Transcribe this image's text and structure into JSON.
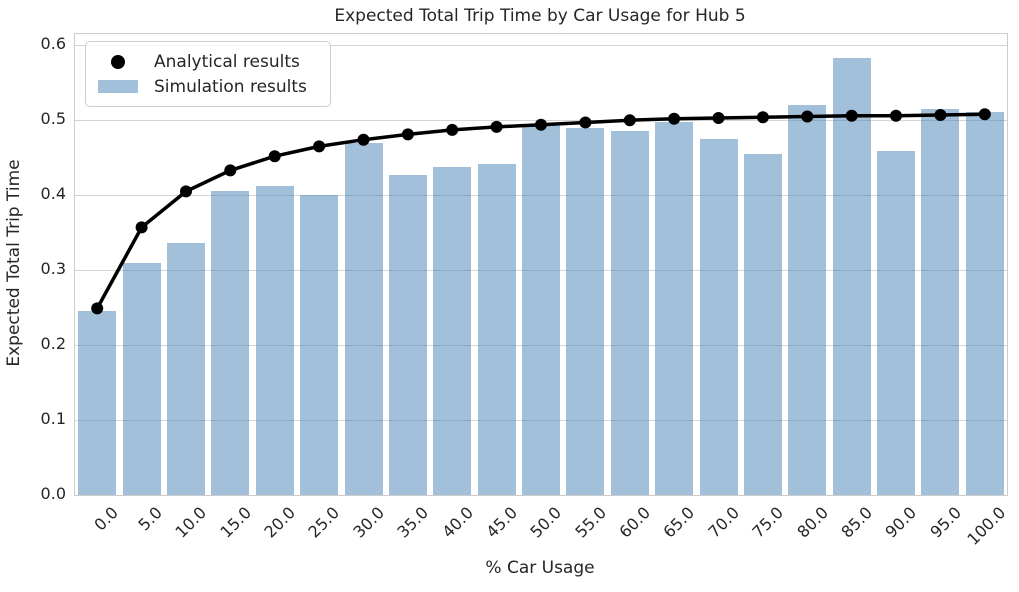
{
  "chart_data": {
    "type": "bar+line",
    "title": "Expected Total Trip Time by Car Usage for Hub 5",
    "xlabel": "% Car Usage",
    "ylabel": "Expected Total Trip Time",
    "categories": [
      "0.0",
      "5.0",
      "10.0",
      "15.0",
      "20.0",
      "25.0",
      "30.0",
      "35.0",
      "40.0",
      "45.0",
      "50.0",
      "55.0",
      "60.0",
      "65.0",
      "70.0",
      "75.0",
      "80.0",
      "85.0",
      "90.0",
      "95.0",
      "100.0"
    ],
    "series": [
      {
        "name": "Analytical results",
        "type": "line",
        "marker": "circle",
        "color": "#000000",
        "values": [
          0.249,
          0.357,
          0.405,
          0.433,
          0.452,
          0.465,
          0.474,
          0.481,
          0.487,
          0.491,
          0.494,
          0.497,
          0.5,
          0.502,
          0.503,
          0.504,
          0.505,
          0.506,
          0.506,
          0.507,
          0.508
        ]
      },
      {
        "name": "Simulation results",
        "type": "bar",
        "color": "#4682b4",
        "alpha": 0.5,
        "values": [
          0.245,
          0.31,
          0.336,
          0.406,
          0.412,
          0.4,
          0.47,
          0.427,
          0.437,
          0.441,
          0.494,
          0.49,
          0.486,
          0.498,
          0.475,
          0.455,
          0.521,
          0.583,
          0.459,
          0.515,
          0.511
        ]
      }
    ],
    "ylim": [
      0.0,
      0.615
    ],
    "yticks": [
      0.0,
      0.1,
      0.2,
      0.3,
      0.4,
      0.5,
      0.6
    ],
    "ytick_labels": [
      "0.0",
      "0.1",
      "0.2",
      "0.3",
      "0.4",
      "0.5",
      "0.6"
    ],
    "grid": true,
    "legend_position": "upper left",
    "colors": {
      "background": "#ffffff",
      "grid": "#d4d4d4",
      "spine": "#cccccc",
      "text": "#262626",
      "bar_fill_on_white": "#a2c0d9",
      "line": "#000000"
    }
  }
}
